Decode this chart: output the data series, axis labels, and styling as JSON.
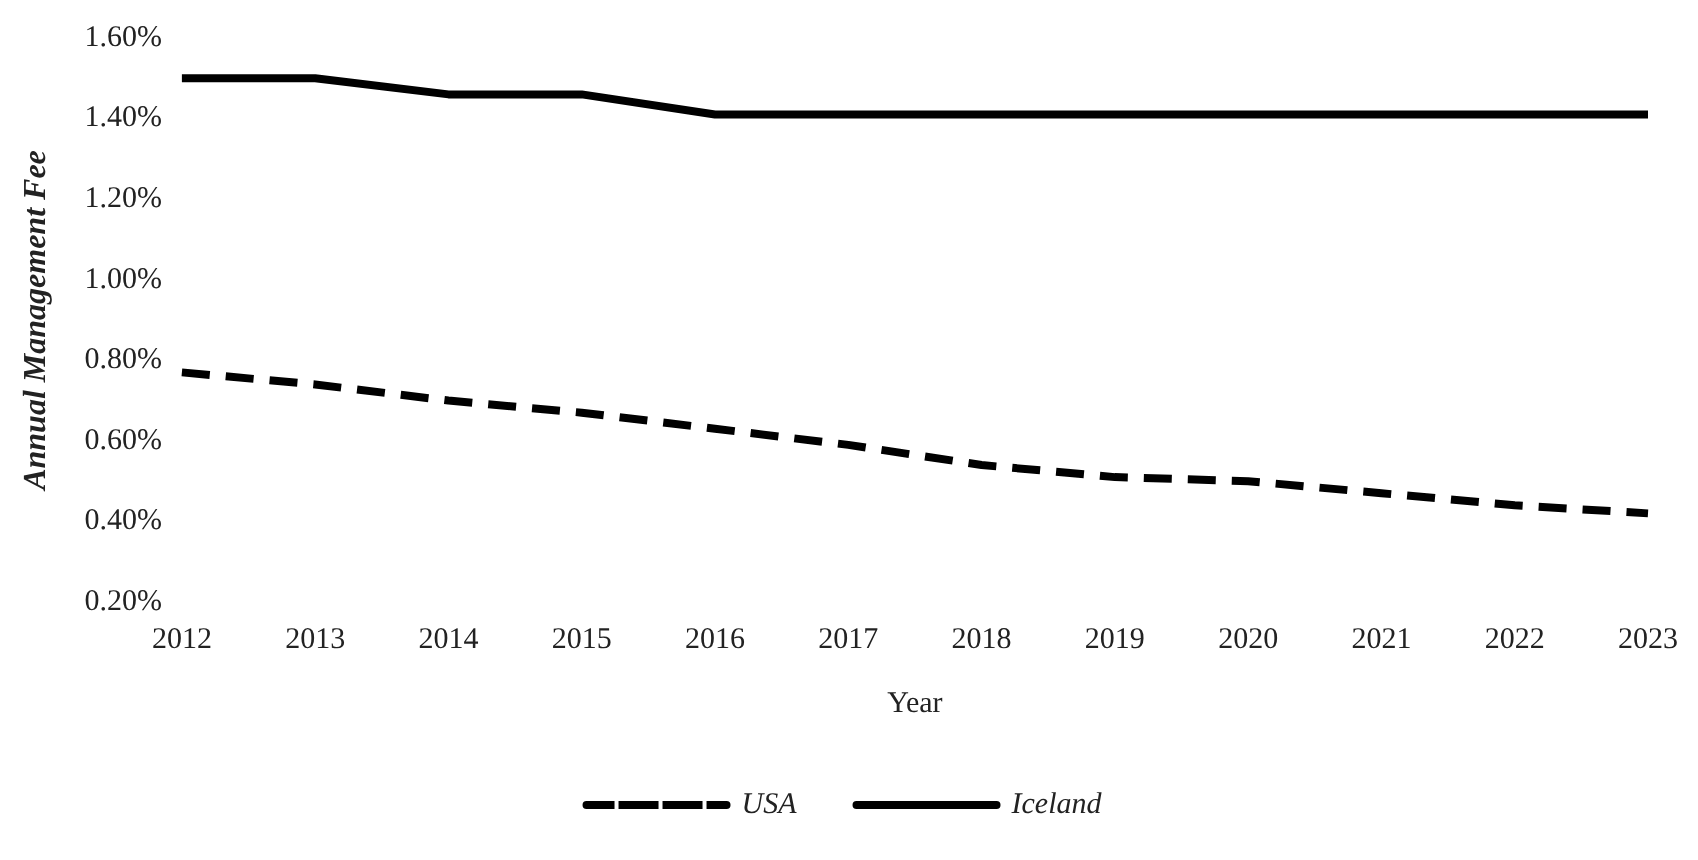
{
  "chart_data": {
    "type": "line",
    "xlabel": "Year",
    "ylabel": "Annual Management Fee",
    "categories": [
      "2012",
      "2013",
      "2014",
      "2015",
      "2016",
      "2017",
      "2018",
      "2019",
      "2020",
      "2021",
      "2022",
      "2023"
    ],
    "series": [
      {
        "name": "USA",
        "color": "#000000",
        "line_style": "dashed",
        "values": [
          0.77,
          0.74,
          0.7,
          0.67,
          0.63,
          0.59,
          0.54,
          0.51,
          0.5,
          0.47,
          0.44,
          0.42
        ]
      },
      {
        "name": "Iceland",
        "color": "#000000",
        "line_style": "solid",
        "values": [
          1.5,
          1.5,
          1.46,
          1.46,
          1.41,
          1.41,
          1.41,
          1.41,
          1.41,
          1.41,
          1.41,
          1.41
        ]
      }
    ],
    "ylim": [
      0.2,
      1.6
    ],
    "yticks": [
      {
        "value": 0.2,
        "label": "0.20%"
      },
      {
        "value": 0.4,
        "label": "0.40%"
      },
      {
        "value": 0.6,
        "label": "0.60%"
      },
      {
        "value": 0.8,
        "label": "0.80%"
      },
      {
        "value": 1.0,
        "label": "1.00%"
      },
      {
        "value": 1.2,
        "label": "1.20%"
      },
      {
        "value": 1.4,
        "label": "1.40%"
      },
      {
        "value": 1.6,
        "label": "1.60%"
      }
    ],
    "grid": false,
    "legend": "bottom",
    "marker": "none"
  }
}
